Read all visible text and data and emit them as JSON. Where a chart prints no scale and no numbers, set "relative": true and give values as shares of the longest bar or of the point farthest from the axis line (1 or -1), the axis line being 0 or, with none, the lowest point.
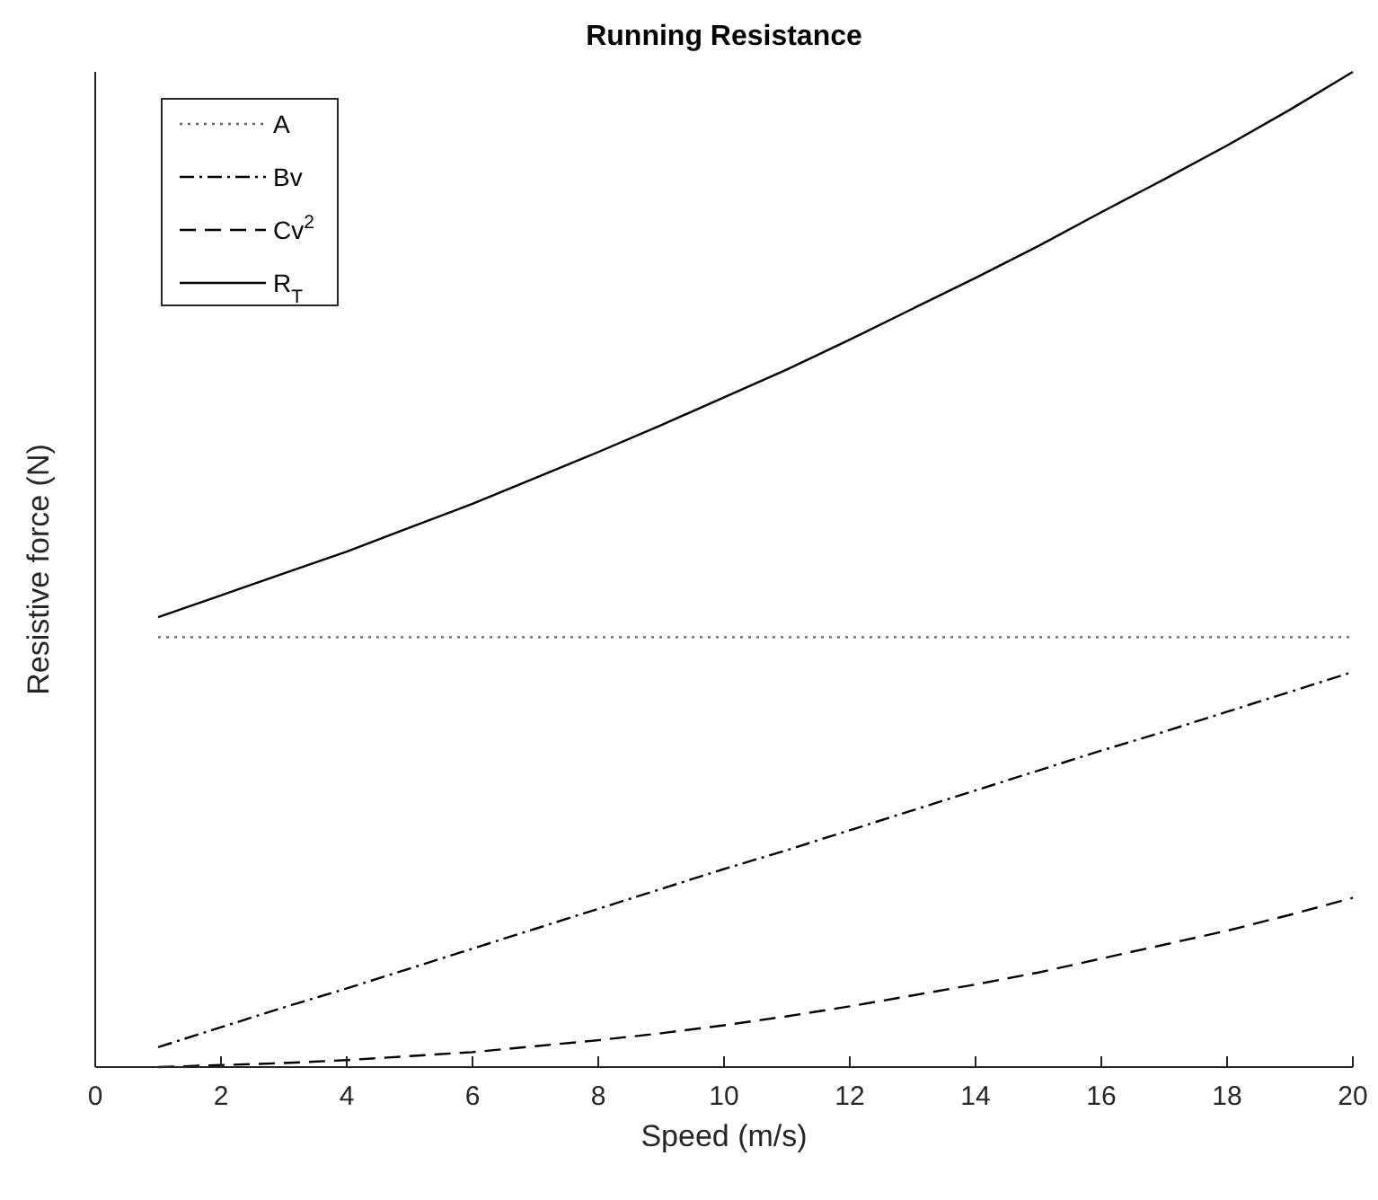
{
  "chart_data": {
    "type": "line",
    "title": "Running Resistance",
    "xlabel": "Speed (m/s)",
    "ylabel": "Resistive force (N)",
    "relative": true,
    "xlim": [
      0,
      20
    ],
    "xticks": [
      0,
      2,
      4,
      6,
      8,
      10,
      12,
      14,
      16,
      18,
      20
    ],
    "x": [
      1,
      2,
      3,
      4,
      5,
      6,
      7,
      8,
      9,
      10,
      11,
      12,
      13,
      14,
      15,
      16,
      17,
      18,
      19,
      20
    ],
    "legend": "top left",
    "grid": false,
    "series": [
      {
        "name": "A",
        "color": "#666666",
        "line_style": "dotted",
        "values": [
          0.432,
          0.432,
          0.432,
          0.432,
          0.432,
          0.432,
          0.432,
          0.432,
          0.432,
          0.432,
          0.432,
          0.432,
          0.432,
          0.432,
          0.432,
          0.432,
          0.432,
          0.432,
          0.432,
          0.432
        ]
      },
      {
        "name": "Bv",
        "color": "#000000",
        "line_style": "dashdot",
        "values": [
          0.02,
          0.04,
          0.06,
          0.079,
          0.099,
          0.119,
          0.139,
          0.159,
          0.179,
          0.199,
          0.218,
          0.238,
          0.258,
          0.278,
          0.298,
          0.318,
          0.337,
          0.357,
          0.377,
          0.397
        ]
      },
      {
        "name": "Cv$^{2}$",
        "color": "#000000",
        "line_style": "dashed",
        "values": [
          0.0,
          0.002,
          0.004,
          0.007,
          0.011,
          0.015,
          0.021,
          0.027,
          0.034,
          0.042,
          0.051,
          0.061,
          0.072,
          0.083,
          0.095,
          0.109,
          0.123,
          0.137,
          0.153,
          0.17
        ]
      },
      {
        "name": "R$_{T}$",
        "color": "#000000",
        "line_style": "solid",
        "values": [
          0.452,
          0.474,
          0.496,
          0.518,
          0.542,
          0.566,
          0.592,
          0.618,
          0.645,
          0.673,
          0.701,
          0.731,
          0.762,
          0.793,
          0.825,
          0.859,
          0.892,
          0.926,
          0.962,
          1
        ]
      }
    ]
  }
}
